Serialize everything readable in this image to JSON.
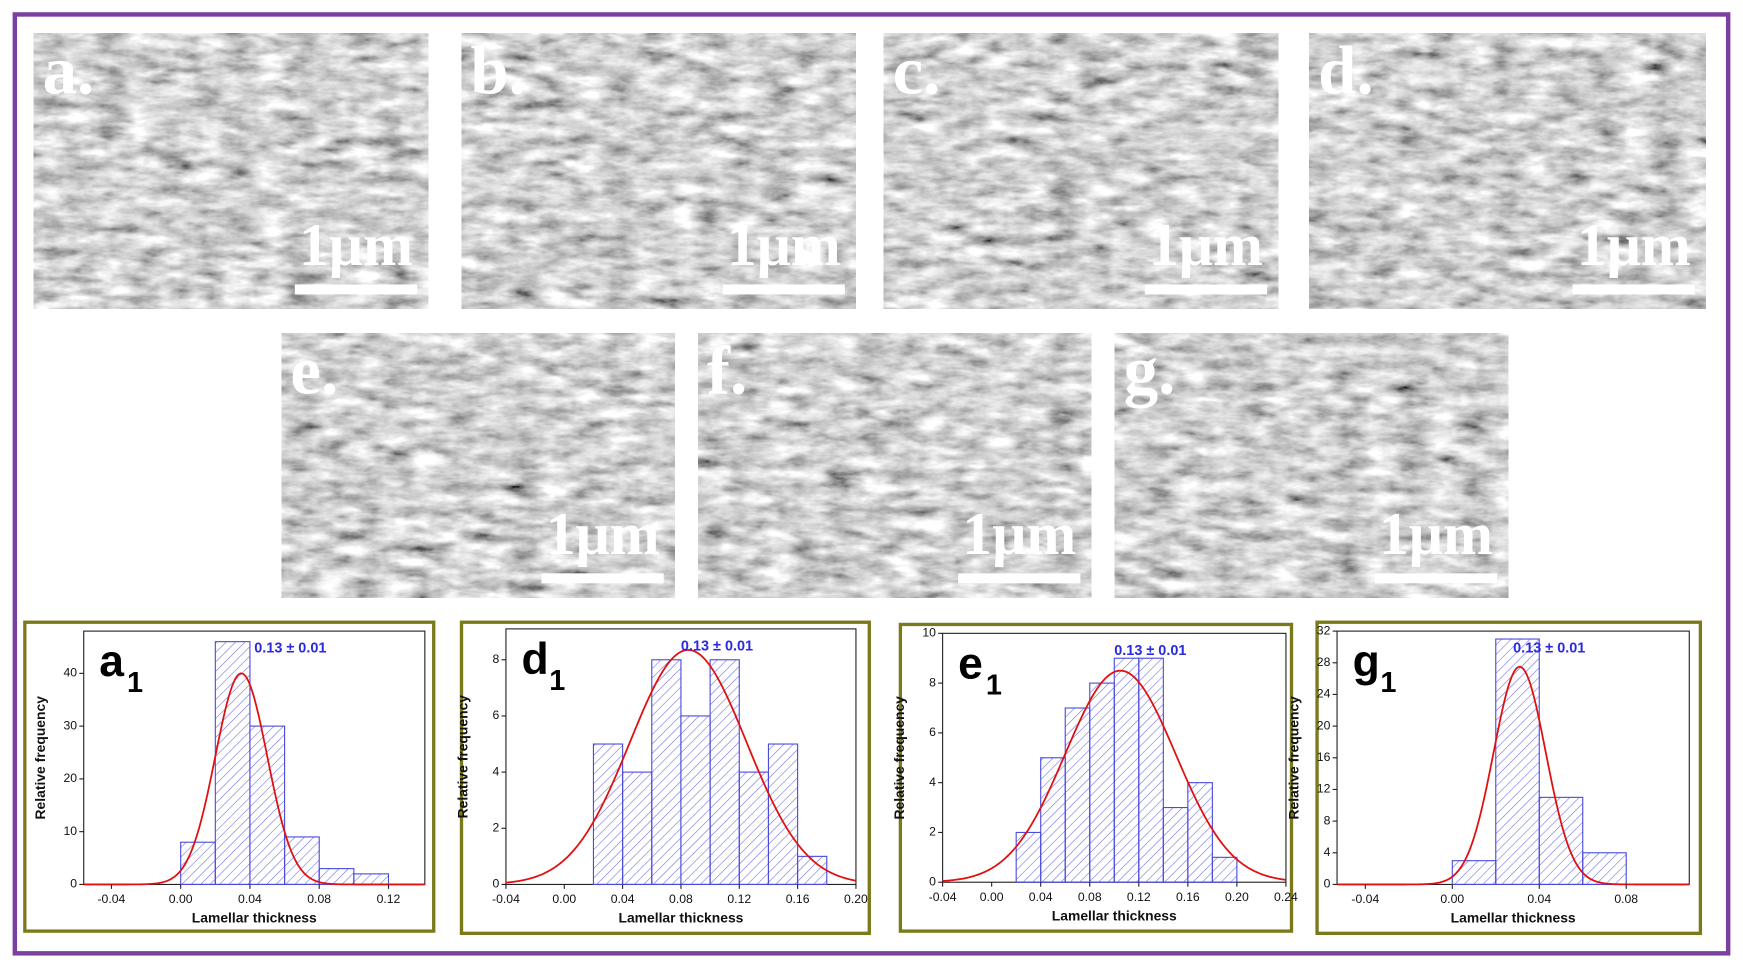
{
  "images": [
    {
      "label": "a.",
      "scale_bar": "1μm"
    },
    {
      "label": "b.",
      "scale_bar": "1μm"
    },
    {
      "label": "c.",
      "scale_bar": "1μm"
    },
    {
      "label": "d.",
      "scale_bar": "1μm"
    },
    {
      "label": "e.",
      "scale_bar": "1μm"
    },
    {
      "label": "f.",
      "scale_bar": "1μm"
    },
    {
      "label": "g.",
      "scale_bar": "1μm"
    }
  ],
  "chart_data": [
    {
      "type": "histogram",
      "panel_label": "a",
      "panel_subscript": "1",
      "annotation": "0.13 ± 0.01",
      "xlabel": "Lamellar thickness",
      "ylabel": "Relative frequency",
      "bins": [
        0,
        0.02,
        0.04,
        0.06,
        0.08,
        0.1,
        0.12
      ],
      "values": [
        8,
        46,
        30,
        9,
        3,
        2
      ],
      "color": "#4a4ae0",
      "fit": {
        "mean": 0.035,
        "sd": 0.015,
        "peak": 40,
        "color": "#e01010"
      },
      "xlim": [
        -0.056,
        0.141
      ],
      "ylim": [
        0,
        48
      ],
      "xticks": [
        {
          "value": -0.04,
          "label": "-0.04"
        },
        {
          "value": 0,
          "label": "0.00"
        },
        {
          "value": 0.04,
          "label": "0.04"
        },
        {
          "value": 0.08,
          "label": "0.08"
        },
        {
          "value": 0.12,
          "label": "0.12"
        }
      ],
      "yticks": [
        0,
        10,
        20,
        30,
        40
      ]
    },
    {
      "type": "histogram",
      "panel_label": "d",
      "panel_subscript": "1",
      "annotation": "0.13 ± 0.01",
      "xlabel": "Lamellar thickness",
      "ylabel": "Relative frequency",
      "bins": [
        0.02,
        0.04,
        0.06,
        0.08,
        0.1,
        0.12,
        0.14,
        0.16,
        0.18
      ],
      "values": [
        5,
        4,
        8,
        6,
        8,
        4,
        5,
        1
      ],
      "color": "#4a4ae0",
      "fit": {
        "mean": 0.085,
        "sd": 0.04,
        "peak": 8.35,
        "color": "#e01010"
      },
      "xlim": [
        -0.04,
        0.2
      ],
      "ylim": [
        0,
        9.1
      ],
      "xticks": [
        {
          "value": -0.04,
          "label": "-0.04"
        },
        {
          "value": 0,
          "label": "0.00"
        },
        {
          "value": 0.04,
          "label": "0.04"
        },
        {
          "value": 0.08,
          "label": "0.08"
        },
        {
          "value": 0.12,
          "label": "0.12"
        },
        {
          "value": 0.16,
          "label": "0.16"
        },
        {
          "value": 0.2,
          "label": "0.20"
        }
      ],
      "yticks": [
        0,
        2,
        4,
        6,
        8
      ]
    },
    {
      "type": "histogram",
      "panel_label": "e",
      "panel_subscript": "1",
      "annotation": "0.13 ± 0.01",
      "xlabel": "Lamellar thickness",
      "ylabel": "Relative frequency",
      "bins": [
        0.02,
        0.04,
        0.06,
        0.08,
        0.1,
        0.12,
        0.14,
        0.16,
        0.18,
        0.2
      ],
      "values": [
        2,
        5,
        7,
        8,
        9,
        9,
        3,
        4,
        1
      ],
      "color": "#4a4ae0",
      "fit": {
        "mean": 0.105,
        "sd": 0.045,
        "peak": 8.5,
        "color": "#e01010"
      },
      "xlim": [
        -0.04,
        0.24
      ],
      "ylim": [
        0,
        10
      ],
      "xticks": [
        {
          "value": -0.04,
          "label": "-0.04"
        },
        {
          "value": 0,
          "label": "0.00"
        },
        {
          "value": 0.04,
          "label": "0.04"
        },
        {
          "value": 0.08,
          "label": "0.08"
        },
        {
          "value": 0.12,
          "label": "0.12"
        },
        {
          "value": 0.16,
          "label": "0.16"
        },
        {
          "value": 0.2,
          "label": "0.20"
        },
        {
          "value": 0.24,
          "label": "0.24"
        }
      ],
      "yticks": [
        0,
        2,
        4,
        6,
        8,
        10
      ]
    },
    {
      "type": "histogram",
      "panel_label": "g",
      "panel_subscript": "1",
      "annotation": "0.13 ± 0.01",
      "xlabel": "Lamellar thickness",
      "ylabel": "Relative frequency",
      "bins": [
        0,
        0.02,
        0.04,
        0.06,
        0.08
      ],
      "values": [
        3,
        31,
        11,
        4
      ],
      "color": "#4a4ae0",
      "fit": {
        "mean": 0.031,
        "sd": 0.012,
        "peak": 27.5,
        "color": "#e01010"
      },
      "xlim": [
        -0.053,
        0.109
      ],
      "ylim": [
        0,
        32
      ],
      "xticks": [
        {
          "value": -0.04,
          "label": "-0.04"
        },
        {
          "value": 0,
          "label": "0.00"
        },
        {
          "value": 0.04,
          "label": "0.04"
        },
        {
          "value": 0.08,
          "label": "0.08"
        }
      ],
      "yticks": [
        0,
        4,
        8,
        12,
        16,
        20,
        24,
        28,
        32
      ]
    }
  ]
}
